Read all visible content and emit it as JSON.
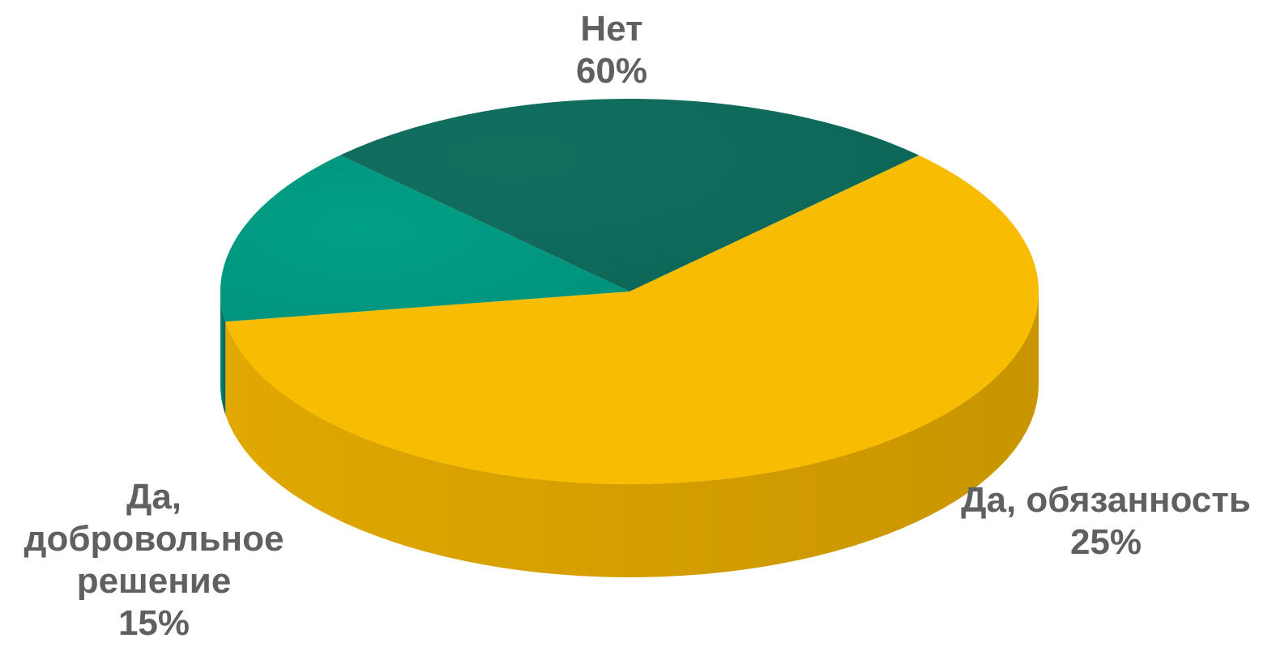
{
  "chart_data": {
    "type": "pie",
    "is_3d": true,
    "slices": [
      {
        "label": "Нет",
        "value": 60,
        "value_label": "60%",
        "color": "#F8BC00"
      },
      {
        "label": "Да, обязанность",
        "value": 25,
        "value_label": "25%",
        "color": "#0E6A5E"
      },
      {
        "label": "Да, добровольное решение",
        "value": 15,
        "value_label": "15%",
        "color": "#00967D"
      }
    ],
    "labels": {
      "net": {
        "lines": [
          "Нет"
        ],
        "value": "60%"
      },
      "oblig": {
        "lines": [
          "Да, обязанность"
        ],
        "value": "25%"
      },
      "vol": {
        "lines": [
          "Да,",
          "добровольное",
          "решение"
        ],
        "value": "15%"
      }
    },
    "legend": "none",
    "label_color": "#606060"
  }
}
